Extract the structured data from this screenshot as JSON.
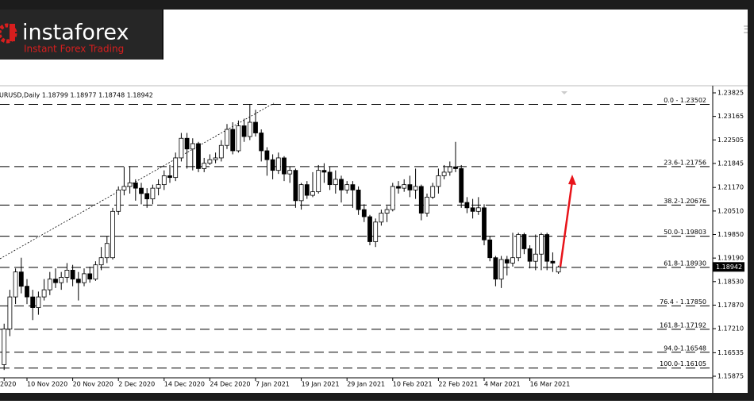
{
  "logo": {
    "name": "instaforex",
    "tagline": "Instant Forex Trading"
  },
  "chart_data": {
    "type": "candlestick",
    "title": "URUSD,Daily  1.18799 1.18977 1.18748 1.18942",
    "categories": [
      "2020",
      null,
      null,
      null,
      "10 Nov 2020",
      null,
      null,
      null,
      null,
      null,
      null,
      null,
      "20 Nov 2020",
      null,
      null,
      null,
      null,
      null,
      null,
      null,
      "2 Dec 2020",
      null,
      null,
      null,
      null,
      null,
      null,
      null,
      "14 Dec 2020",
      null,
      null,
      null,
      null,
      null,
      null,
      null,
      "24 Dec 2020",
      null,
      null,
      null,
      null,
      null,
      null,
      null,
      "7 Jan 2021",
      null,
      null,
      null,
      null,
      null,
      null,
      null,
      "19 Jan 2021",
      null,
      null,
      null,
      null,
      null,
      null,
      null,
      "29 Jan 2021",
      null,
      null,
      null,
      null,
      null,
      null,
      null,
      "10 Feb 2021",
      null,
      null,
      null,
      null,
      null,
      null,
      null,
      "22 Feb 2021",
      null,
      null,
      null,
      null,
      null,
      null,
      null,
      "4 Mar 2021",
      null,
      null,
      null,
      null,
      null,
      null,
      null,
      "16 Mar 2021",
      null,
      null,
      null,
      null,
      null
    ],
    "ohlc": [
      [
        1.162,
        1.1735,
        1.1605,
        1.172
      ],
      [
        1.172,
        1.183,
        1.17,
        1.181
      ],
      [
        1.181,
        1.189,
        1.179,
        1.188
      ],
      [
        1.188,
        1.192,
        1.182,
        1.184
      ],
      [
        1.184,
        1.186,
        1.179,
        1.181
      ],
      [
        1.181,
        1.183,
        1.1745,
        1.178
      ],
      [
        1.178,
        1.1825,
        1.176,
        1.181
      ],
      [
        1.181,
        1.186,
        1.18,
        1.183
      ],
      [
        1.183,
        1.188,
        1.1815,
        1.186
      ],
      [
        1.186,
        1.189,
        1.1835,
        1.185
      ],
      [
        1.185,
        1.188,
        1.183,
        1.1865
      ],
      [
        1.1865,
        1.1905,
        1.185,
        1.1885
      ],
      [
        1.1885,
        1.19,
        1.184,
        1.186
      ],
      [
        1.186,
        1.188,
        1.18,
        1.185
      ],
      [
        1.185,
        1.189,
        1.184,
        1.1875
      ],
      [
        1.1875,
        1.1895,
        1.185,
        1.186
      ],
      [
        1.186,
        1.191,
        1.1855,
        1.19
      ],
      [
        1.19,
        1.195,
        1.1885,
        1.192
      ],
      [
        1.192,
        1.198,
        1.1905,
        1.196
      ],
      [
        1.192,
        1.206,
        1.1915,
        1.205
      ],
      [
        1.205,
        1.212,
        1.204,
        1.211
      ],
      [
        1.211,
        1.2175,
        1.2095,
        1.212
      ],
      [
        1.212,
        1.2177,
        1.21,
        1.213
      ],
      [
        1.213,
        1.214,
        1.208,
        1.2115
      ],
      [
        1.2115,
        1.213,
        1.207,
        1.21
      ],
      [
        1.21,
        1.2115,
        1.206,
        1.2085
      ],
      [
        1.2085,
        1.2125,
        1.207,
        1.2115
      ],
      [
        1.2115,
        1.214,
        1.2095,
        1.2125
      ],
      [
        1.2125,
        1.2165,
        1.211,
        1.215
      ],
      [
        1.215,
        1.218,
        1.213,
        1.2145
      ],
      [
        1.2145,
        1.2215,
        1.2135,
        1.22
      ],
      [
        1.22,
        1.227,
        1.219,
        1.2255
      ],
      [
        1.2255,
        1.227,
        1.217,
        1.2225
      ],
      [
        1.2225,
        1.2255,
        1.2165,
        1.224
      ],
      [
        1.224,
        1.2245,
        1.216,
        1.217
      ],
      [
        1.217,
        1.22,
        1.216,
        1.2185
      ],
      [
        1.2185,
        1.221,
        1.218,
        1.2195
      ],
      [
        1.2195,
        1.2215,
        1.2185,
        1.22
      ],
      [
        1.22,
        1.225,
        1.219,
        1.2235
      ],
      [
        1.2235,
        1.2295,
        1.2225,
        1.228
      ],
      [
        1.228,
        1.23,
        1.221,
        1.222
      ],
      [
        1.222,
        1.2305,
        1.2215,
        1.229
      ],
      [
        1.229,
        1.231,
        1.2245,
        1.226
      ],
      [
        1.226,
        1.235,
        1.225,
        1.23
      ],
      [
        1.23,
        1.2335,
        1.226,
        1.227
      ],
      [
        1.227,
        1.228,
        1.219,
        1.222
      ],
      [
        1.222,
        1.223,
        1.215,
        1.2195
      ],
      [
        1.2195,
        1.221,
        1.214,
        1.2165
      ],
      [
        1.2165,
        1.2215,
        1.2155,
        1.22
      ],
      [
        1.22,
        1.2205,
        1.2135,
        1.2155
      ],
      [
        1.2155,
        1.2175,
        1.213,
        1.2165
      ],
      [
        1.2165,
        1.217,
        1.206,
        1.208
      ],
      [
        1.208,
        1.213,
        1.2055,
        1.2125
      ],
      [
        1.2125,
        1.2135,
        1.2085,
        1.2095
      ],
      [
        1.2095,
        1.216,
        1.209,
        1.2105
      ],
      [
        1.2105,
        1.218,
        1.21,
        1.2165
      ],
      [
        1.2165,
        1.2185,
        1.213,
        1.216
      ],
      [
        1.216,
        1.2175,
        1.211,
        1.2125
      ],
      [
        1.2125,
        1.2165,
        1.21,
        1.214
      ],
      [
        1.214,
        1.215,
        1.2075,
        1.211
      ],
      [
        1.211,
        1.2135,
        1.21,
        1.2125
      ],
      [
        1.2125,
        1.2135,
        1.206,
        1.211
      ],
      [
        1.211,
        1.212,
        1.204,
        1.2055
      ],
      [
        1.2055,
        1.207,
        1.202,
        1.2035
      ],
      [
        1.2035,
        1.204,
        1.1955,
        1.1965
      ],
      [
        1.1965,
        1.203,
        1.195,
        1.202
      ],
      [
        1.202,
        1.2055,
        1.201,
        1.2045
      ],
      [
        1.2045,
        1.2065,
        1.202,
        1.2055
      ],
      [
        1.2055,
        1.213,
        1.205,
        1.212
      ],
      [
        1.212,
        1.2135,
        1.21,
        1.2115
      ],
      [
        1.2115,
        1.214,
        1.2105,
        1.2125
      ],
      [
        1.2125,
        1.215,
        1.209,
        1.211
      ],
      [
        1.211,
        1.217,
        1.2085,
        1.212
      ],
      [
        1.212,
        1.2125,
        1.2025,
        1.2045
      ],
      [
        1.2045,
        1.21,
        1.2035,
        1.209
      ],
      [
        1.209,
        1.213,
        1.2085,
        1.212
      ],
      [
        1.212,
        1.217,
        1.21,
        1.215
      ],
      [
        1.215,
        1.218,
        1.214,
        1.216
      ],
      [
        1.216,
        1.219,
        1.215,
        1.2175
      ],
      [
        1.2175,
        1.2245,
        1.216,
        1.217
      ],
      [
        1.217,
        1.218,
        1.206,
        1.2075
      ],
      [
        1.2075,
        1.209,
        1.2045,
        1.206
      ],
      [
        1.206,
        1.2085,
        1.203,
        1.205
      ],
      [
        1.205,
        1.209,
        1.204,
        1.206
      ],
      [
        1.206,
        1.207,
        1.1955,
        1.197
      ],
      [
        1.197,
        1.198,
        1.191,
        1.192
      ],
      [
        1.192,
        1.1925,
        1.184,
        1.186
      ],
      [
        1.186,
        1.1925,
        1.1835,
        1.1915
      ],
      [
        1.1915,
        1.1925,
        1.187,
        1.1905
      ],
      [
        1.1905,
        1.199,
        1.1895,
        1.192
      ],
      [
        1.192,
        1.199,
        1.191,
        1.1985
      ],
      [
        1.1985,
        1.199,
        1.193,
        1.1945
      ],
      [
        1.1945,
        1.1955,
        1.189,
        1.191
      ],
      [
        1.191,
        1.1985,
        1.1885,
        1.193
      ],
      [
        1.193,
        1.199,
        1.1885,
        1.1985
      ],
      [
        1.1985,
        1.199,
        1.1885,
        1.191
      ],
      [
        1.191,
        1.1935,
        1.188,
        1.1905
      ],
      [
        1.18799,
        1.18977,
        1.18748,
        1.18942
      ]
    ],
    "ylim": [
      1.15831,
      1.23936
    ],
    "yticks": [
      1.23825,
      1.23165,
      1.22505,
      1.21845,
      {
        "value": 1.2117,
        "label": "1.21170"
      },
      {
        "value": 1.2051,
        "label": "1.20510"
      },
      {
        "value": 1.1985,
        "label": "1.19850"
      },
      {
        "value": 1.1919,
        "label": "1.19190"
      },
      {
        "value": 1.1853,
        "label": "1.18530"
      },
      {
        "value": 1.1787,
        "label": "1.17870"
      },
      {
        "value": 1.1721,
        "label": "1.17210"
      },
      1.16535,
      1.15875
    ],
    "levels": [
      {
        "value": 1.23502,
        "label": "0.0 - 1.23502"
      },
      {
        "value": 1.21756,
        "label": "23.6-1.21756"
      },
      {
        "value": 1.20676,
        "label": "38.2-1.20676"
      },
      {
        "value": 1.19803,
        "label": "50.0-1.19803"
      },
      {
        "value": 1.1893,
        "label": "61.8-1.18930"
      },
      {
        "value": 1.1785,
        "label": "76.4 - 1.17850"
      },
      {
        "value": 1.17192,
        "label": "161.8-1.17192"
      },
      {
        "value": 1.16548,
        "label": "94.0-1.16548"
      },
      {
        "value": 1.16105,
        "label": "100.0-1.16105"
      }
    ],
    "last_price": 1.18942,
    "up_color": "#ffffff",
    "down_color": "#000000"
  }
}
